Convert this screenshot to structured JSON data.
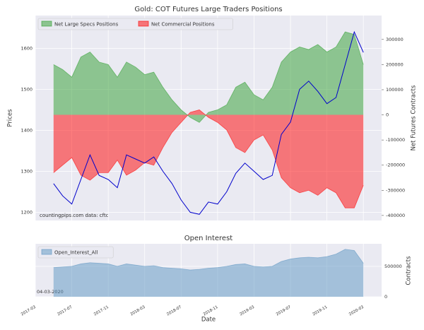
{
  "chart_data": [
    {
      "type": "area",
      "title": "Gold: COT Futures Large Traders Positions",
      "ylabel": "Prices",
      "y2label": "Net Futures Contracts",
      "annotation": "countingpips.com    data: cftc",
      "legend": "upper left",
      "grid": true,
      "x": [
        "2017-05",
        "2017-06",
        "2017-07",
        "2017-08",
        "2017-09",
        "2017-10",
        "2017-11",
        "2017-12",
        "2018-01",
        "2018-02",
        "2018-03",
        "2018-04",
        "2018-05",
        "2018-06",
        "2018-07",
        "2018-08",
        "2018-09",
        "2018-10",
        "2018-11",
        "2018-12",
        "2019-01",
        "2019-02",
        "2019-03",
        "2019-04",
        "2019-05",
        "2019-06",
        "2019-07",
        "2019-08",
        "2019-09",
        "2019-10",
        "2019-11",
        "2019-12",
        "2020-01",
        "2020-02",
        "2020-03"
      ],
      "xlim": [
        "2017-03",
        "2020-05"
      ],
      "ylim": [
        1180,
        1680
      ],
      "yticks": [
        1200,
        1300,
        1400,
        1500,
        1600
      ],
      "y2lim": [
        -420000,
        395000
      ],
      "y2ticks": [
        -400000,
        -300000,
        -200000,
        -100000,
        0,
        100000,
        200000,
        300000
      ],
      "series": [
        {
          "name": "Net Large Specs Positions",
          "color": "#2e9e2e",
          "axis": "y2",
          "values": [
            200000,
            180000,
            150000,
            230000,
            250000,
            210000,
            200000,
            150000,
            210000,
            190000,
            160000,
            170000,
            110000,
            60000,
            20000,
            -10000,
            -30000,
            10000,
            20000,
            40000,
            110000,
            130000,
            80000,
            60000,
            110000,
            210000,
            250000,
            270000,
            260000,
            280000,
            250000,
            270000,
            330000,
            320000,
            200000
          ]
        },
        {
          "name": "Net Commercial Positions",
          "color": "#ff0000",
          "axis": "y2",
          "values": [
            -230000,
            -200000,
            -170000,
            -240000,
            -260000,
            -230000,
            -230000,
            -180000,
            -240000,
            -220000,
            -190000,
            -200000,
            -130000,
            -70000,
            -30000,
            10000,
            20000,
            -10000,
            -30000,
            -60000,
            -130000,
            -150000,
            -100000,
            -80000,
            -140000,
            -250000,
            -290000,
            -310000,
            -300000,
            -320000,
            -290000,
            -310000,
            -370000,
            -370000,
            -280000
          ]
        }
      ],
      "line": {
        "color": "#0000cc",
        "axis": "y",
        "values": [
          1270,
          1240,
          1220,
          1280,
          1340,
          1290,
          1280,
          1260,
          1340,
          1330,
          1320,
          1335,
          1300,
          1270,
          1230,
          1200,
          1195,
          1225,
          1220,
          1250,
          1295,
          1320,
          1300,
          1280,
          1290,
          1390,
          1420,
          1500,
          1520,
          1495,
          1465,
          1480,
          1560,
          1640,
          1590
        ]
      }
    },
    {
      "type": "area",
      "title": "Open Interest",
      "xlabel": "Date",
      "ylabel": "Contracts",
      "annotation": "04-03-2020",
      "legend": "upper left",
      "grid": true,
      "x": [
        "2017-05",
        "2017-06",
        "2017-07",
        "2017-08",
        "2017-09",
        "2017-10",
        "2017-11",
        "2017-12",
        "2018-01",
        "2018-02",
        "2018-03",
        "2018-04",
        "2018-05",
        "2018-06",
        "2018-07",
        "2018-08",
        "2018-09",
        "2018-10",
        "2018-11",
        "2018-12",
        "2019-01",
        "2019-02",
        "2019-03",
        "2019-04",
        "2019-05",
        "2019-06",
        "2019-07",
        "2019-08",
        "2019-09",
        "2019-10",
        "2019-11",
        "2019-12",
        "2020-01",
        "2020-02",
        "2020-03"
      ],
      "xlim": [
        "2017-03",
        "2020-05"
      ],
      "xticks": [
        "2017-03",
        "2017-07",
        "2017-11",
        "2018-03",
        "2018-07",
        "2018-11",
        "2019-03",
        "2019-07",
        "2019-11",
        "2020-03"
      ],
      "ylim": [
        0,
        870000
      ],
      "yticks": [
        0,
        500000
      ],
      "series": [
        {
          "name": "Open_Interest_All",
          "color": "#5b95c2",
          "values": [
            480000,
            490000,
            500000,
            540000,
            560000,
            550000,
            540000,
            500000,
            540000,
            520000,
            500000,
            510000,
            480000,
            470000,
            460000,
            440000,
            450000,
            470000,
            480000,
            500000,
            530000,
            540000,
            500000,
            490000,
            500000,
            580000,
            620000,
            640000,
            650000,
            640000,
            660000,
            700000,
            780000,
            760000,
            550000
          ]
        }
      ]
    }
  ]
}
